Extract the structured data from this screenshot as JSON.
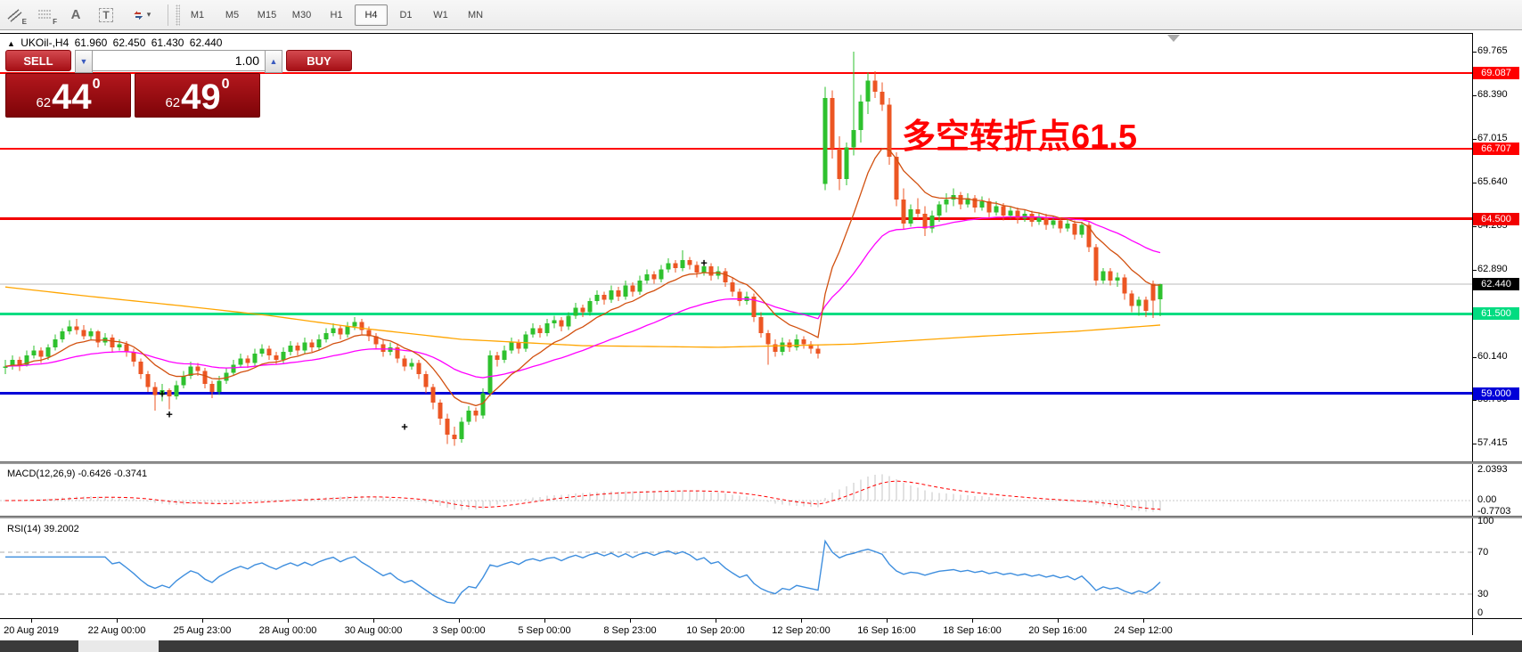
{
  "toolbar": {
    "tools": [
      {
        "name": "equidistant-channel",
        "glyph": "E"
      },
      {
        "name": "fibonacci-lines",
        "glyph": "F"
      },
      {
        "name": "text-label",
        "glyph": "A"
      },
      {
        "name": "text",
        "glyph": "T"
      },
      {
        "name": "arrow-objects",
        "glyph": "▾"
      }
    ],
    "timeframes": [
      "M1",
      "M5",
      "M15",
      "M30",
      "H1",
      "H4",
      "D1",
      "W1",
      "MN"
    ],
    "selected_timeframe": "H4"
  },
  "symbol_info": {
    "collapse_arrow": "▲",
    "symbol": "UKOil-,H4",
    "open": "61.960",
    "high": "62.450",
    "low": "61.430",
    "close": "62.440"
  },
  "trade_panel": {
    "sell_label": "SELL",
    "buy_label": "BUY",
    "volume": "1.00",
    "sell_price": {
      "small": "62",
      "big": "44",
      "sup": "0"
    },
    "buy_price": {
      "small": "62",
      "big": "49",
      "sup": "0"
    }
  },
  "annotation": {
    "text": "多空转折点61.5",
    "color": "#FF0000"
  },
  "macd_label": "MACD(12,26,9) -0.6426 -0.3741",
  "rsi_label": "RSI(14) 39.2002",
  "chart_data": {
    "type": "candlestick",
    "symbol": "UKOil",
    "timeframe": "H4",
    "bull_color": "#2EC12E",
    "bear_color": "#EC5623",
    "price_axis": {
      "ticks": [
        {
          "label": "69.765",
          "value": 69.765
        },
        {
          "label": "68.390",
          "value": 68.39
        },
        {
          "label": "67.015",
          "value": 67.015
        },
        {
          "label": "65.640",
          "value": 65.64
        },
        {
          "label": "64.265",
          "value": 64.265
        },
        {
          "label": "62.890",
          "value": 62.89
        },
        {
          "label": "60.140",
          "value": 60.14
        },
        {
          "label": "58.790",
          "value": 58.79
        },
        {
          "label": "57.415",
          "value": 57.415
        }
      ],
      "level_labels": [
        {
          "label": "69.087",
          "value": 69.087,
          "bg": "#FF0000"
        },
        {
          "label": "66.707",
          "value": 66.707,
          "bg": "#FF0000"
        },
        {
          "label": "64.500",
          "value": 64.5,
          "bg": "#F20000"
        },
        {
          "label": "62.440",
          "value": 62.44,
          "bg": "#000000"
        },
        {
          "label": "61.500",
          "value": 61.5,
          "bg": "#00DC81"
        },
        {
          "label": "59.000",
          "value": 59.0,
          "bg": "#0000D8"
        }
      ]
    },
    "hlines": [
      {
        "value": 69.087,
        "color": "#FF0000",
        "width": 2
      },
      {
        "value": 66.707,
        "color": "#FF0000",
        "width": 2
      },
      {
        "value": 64.5,
        "color": "#F20000",
        "width": 3
      },
      {
        "value": 61.5,
        "color": "#00DC81",
        "width": 3
      },
      {
        "value": 59.0,
        "color": "#0000D8",
        "width": 3
      }
    ],
    "bid_line": {
      "value": 62.44,
      "color": "#BBBBBB"
    },
    "time_axis": {
      "ticks": [
        "20 Aug 2019",
        "22 Aug 00:00",
        "25 Aug 23:00",
        "28 Aug 00:00",
        "30 Aug 00:00",
        "3 Sep 00:00",
        "5 Sep 00:00",
        "8 Sep 23:00",
        "10 Sep 20:00",
        "12 Sep 20:00",
        "16 Sep 16:00",
        "18 Sep 16:00",
        "20 Sep 16:00",
        "24 Sep 12:00"
      ]
    },
    "ma_lines": [
      {
        "name": "fast",
        "type": "ema",
        "period": 10,
        "color": "#D2500F"
      },
      {
        "name": "medium",
        "type": "ema",
        "period": 34,
        "color": "#FF00FF"
      },
      {
        "name": "slow",
        "type": "points",
        "color": "#FFA500",
        "points": [
          [
            0,
            62.35
          ],
          [
            12,
            62.05
          ],
          [
            25,
            61.75
          ],
          [
            37,
            61.45
          ],
          [
            50,
            61.05
          ],
          [
            64,
            60.7
          ],
          [
            81,
            60.5
          ],
          [
            100,
            60.45
          ],
          [
            119,
            60.55
          ],
          [
            137,
            60.8
          ],
          [
            150,
            60.95
          ],
          [
            162,
            61.15
          ]
        ]
      }
    ],
    "markers": [
      [
        22,
        59.0
      ],
      [
        23,
        58.35
      ],
      [
        56,
        57.95
      ],
      [
        98,
        63.11
      ]
    ],
    "macd": {
      "fast": 12,
      "slow": 26,
      "signal": 9,
      "hist_color": "#C4C4C4",
      "signal_color": "#FF0000",
      "ticks": [
        {
          "label": "2.0393",
          "value": 2.0393
        },
        {
          "label": "0.00",
          "value": 0
        },
        {
          "label": "-0.7703",
          "value": -0.7703
        }
      ]
    },
    "rsi": {
      "period": 14,
      "color": "#3E8EDE",
      "levels": [
        70,
        30
      ],
      "ticks": [
        {
          "label": "100",
          "value": 100
        },
        {
          "label": "70",
          "value": 70
        },
        {
          "label": "30",
          "value": 30
        },
        {
          "label": "0",
          "value": 0
        }
      ]
    },
    "candles": [
      [
        59.8,
        60.05,
        59.6,
        59.85
      ],
      [
        59.85,
        60.2,
        59.75,
        60.05
      ],
      [
        60.05,
        60.15,
        59.7,
        59.9
      ],
      [
        59.9,
        60.35,
        59.85,
        60.2
      ],
      [
        60.2,
        60.5,
        60.1,
        60.35
      ],
      [
        60.35,
        60.45,
        59.95,
        60.15
      ],
      [
        60.15,
        60.55,
        60.05,
        60.45
      ],
      [
        60.45,
        60.85,
        60.35,
        60.7
      ],
      [
        60.7,
        61.05,
        60.6,
        60.95
      ],
      [
        60.95,
        61.3,
        60.85,
        61.1
      ],
      [
        61.1,
        61.35,
        60.85,
        61.0
      ],
      [
        61.0,
        61.15,
        60.7,
        60.8
      ],
      [
        60.8,
        61.05,
        60.7,
        60.95
      ],
      [
        60.95,
        61.0,
        60.45,
        60.6
      ],
      [
        60.6,
        60.9,
        60.5,
        60.75
      ],
      [
        60.75,
        60.85,
        60.3,
        60.45
      ],
      [
        60.45,
        60.7,
        60.35,
        60.55
      ],
      [
        60.55,
        60.65,
        60.15,
        60.3
      ],
      [
        60.3,
        60.4,
        59.85,
        60.0
      ],
      [
        60.0,
        60.1,
        59.45,
        59.6
      ],
      [
        59.6,
        59.7,
        59.05,
        59.2
      ],
      [
        59.2,
        59.35,
        58.45,
        58.95
      ],
      [
        58.95,
        59.3,
        58.75,
        59.1
      ],
      [
        59.1,
        59.15,
        58.5,
        58.9
      ],
      [
        58.9,
        59.4,
        58.8,
        59.25
      ],
      [
        59.25,
        59.7,
        59.15,
        59.55
      ],
      [
        59.55,
        60.0,
        59.45,
        59.85
      ],
      [
        59.85,
        59.95,
        59.55,
        59.7
      ],
      [
        59.7,
        59.8,
        59.15,
        59.3
      ],
      [
        59.3,
        59.4,
        58.85,
        59.05
      ],
      [
        59.05,
        59.55,
        58.95,
        59.4
      ],
      [
        59.4,
        59.8,
        59.3,
        59.65
      ],
      [
        59.65,
        60.05,
        59.55,
        59.9
      ],
      [
        59.9,
        60.25,
        59.8,
        60.1
      ],
      [
        60.1,
        60.2,
        59.8,
        59.95
      ],
      [
        59.95,
        60.4,
        59.85,
        60.25
      ],
      [
        60.25,
        60.55,
        60.15,
        60.4
      ],
      [
        60.4,
        60.5,
        60.05,
        60.2
      ],
      [
        60.2,
        60.3,
        59.9,
        60.05
      ],
      [
        60.05,
        60.45,
        59.95,
        60.3
      ],
      [
        60.3,
        60.65,
        60.2,
        60.5
      ],
      [
        60.5,
        60.6,
        60.2,
        60.35
      ],
      [
        60.35,
        60.75,
        60.25,
        60.6
      ],
      [
        60.6,
        60.7,
        60.3,
        60.45
      ],
      [
        60.45,
        60.85,
        60.35,
        60.7
      ],
      [
        60.7,
        61.05,
        60.6,
        60.9
      ],
      [
        60.9,
        61.2,
        60.8,
        61.05
      ],
      [
        61.05,
        61.15,
        60.7,
        60.85
      ],
      [
        60.85,
        61.25,
        60.75,
        61.1
      ],
      [
        61.1,
        61.4,
        61.0,
        61.25
      ],
      [
        61.25,
        61.35,
        60.85,
        61.0
      ],
      [
        61.0,
        61.1,
        60.65,
        60.8
      ],
      [
        60.8,
        60.9,
        60.4,
        60.55
      ],
      [
        60.55,
        60.7,
        60.15,
        60.3
      ],
      [
        60.3,
        60.6,
        60.2,
        60.45
      ],
      [
        60.45,
        60.55,
        59.95,
        60.1
      ],
      [
        60.1,
        60.2,
        59.7,
        59.85
      ],
      [
        59.85,
        60.1,
        59.75,
        59.95
      ],
      [
        59.95,
        60.05,
        59.45,
        59.6
      ],
      [
        59.6,
        59.7,
        59.0,
        59.2
      ],
      [
        59.2,
        59.3,
        58.5,
        58.7
      ],
      [
        58.7,
        58.8,
        58.0,
        58.2
      ],
      [
        58.2,
        58.35,
        57.4,
        57.7
      ],
      [
        57.7,
        57.95,
        57.35,
        57.55
      ],
      [
        57.55,
        58.25,
        57.45,
        58.1
      ],
      [
        58.1,
        58.6,
        58.0,
        58.45
      ],
      [
        58.45,
        58.55,
        58.1,
        58.3
      ],
      [
        58.3,
        59.15,
        58.2,
        59.0
      ],
      [
        59.0,
        60.35,
        58.9,
        60.2
      ],
      [
        60.2,
        60.3,
        59.85,
        60.05
      ],
      [
        60.05,
        60.5,
        59.95,
        60.35
      ],
      [
        60.35,
        60.75,
        60.25,
        60.6
      ],
      [
        60.6,
        60.7,
        60.25,
        60.4
      ],
      [
        60.4,
        60.95,
        60.3,
        60.85
      ],
      [
        60.85,
        61.2,
        60.75,
        61.05
      ],
      [
        61.05,
        61.15,
        60.75,
        60.9
      ],
      [
        60.9,
        61.35,
        60.8,
        61.2
      ],
      [
        61.2,
        61.45,
        61.05,
        61.3
      ],
      [
        61.3,
        61.4,
        60.95,
        61.1
      ],
      [
        61.1,
        61.55,
        61.0,
        61.45
      ],
      [
        61.45,
        61.85,
        61.35,
        61.7
      ],
      [
        61.7,
        61.8,
        61.4,
        61.55
      ],
      [
        61.55,
        62.0,
        61.45,
        61.9
      ],
      [
        61.9,
        62.25,
        61.8,
        62.1
      ],
      [
        62.1,
        62.2,
        61.8,
        61.95
      ],
      [
        61.95,
        62.4,
        61.85,
        62.25
      ],
      [
        62.25,
        62.35,
        61.9,
        62.05
      ],
      [
        62.05,
        62.55,
        61.95,
        62.4
      ],
      [
        62.4,
        62.5,
        62.05,
        62.2
      ],
      [
        62.2,
        62.7,
        62.1,
        62.55
      ],
      [
        62.55,
        62.9,
        62.45,
        62.75
      ],
      [
        62.75,
        62.85,
        62.45,
        62.6
      ],
      [
        62.6,
        63.05,
        62.5,
        62.9
      ],
      [
        62.9,
        63.25,
        62.8,
        63.1
      ],
      [
        63.1,
        63.2,
        62.8,
        62.95
      ],
      [
        62.95,
        63.5,
        62.85,
        63.2
      ],
      [
        63.2,
        63.3,
        62.9,
        63.05
      ],
      [
        63.05,
        63.15,
        62.65,
        62.8
      ],
      [
        62.8,
        63.15,
        62.7,
        63.0
      ],
      [
        63.0,
        63.1,
        62.55,
        62.7
      ],
      [
        62.7,
        63.0,
        62.6,
        62.85
      ],
      [
        62.85,
        62.95,
        62.35,
        62.5
      ],
      [
        62.5,
        62.65,
        62.05,
        62.2
      ],
      [
        62.2,
        62.3,
        61.75,
        61.9
      ],
      [
        61.9,
        62.2,
        61.8,
        62.05
      ],
      [
        62.05,
        62.15,
        61.25,
        61.4
      ],
      [
        61.4,
        61.55,
        60.75,
        60.9
      ],
      [
        60.9,
        61.0,
        59.9,
        60.55
      ],
      [
        60.55,
        60.7,
        60.15,
        60.3
      ],
      [
        60.3,
        60.75,
        60.2,
        60.6
      ],
      [
        60.6,
        60.7,
        60.3,
        60.45
      ],
      [
        60.45,
        60.85,
        60.35,
        60.7
      ],
      [
        60.7,
        60.8,
        60.4,
        60.55
      ],
      [
        60.55,
        60.65,
        60.25,
        60.4
      ],
      [
        60.4,
        60.55,
        60.1,
        60.25
      ],
      [
        65.6,
        68.65,
        65.4,
        68.3
      ],
      [
        68.3,
        68.55,
        66.4,
        66.7
      ],
      [
        66.7,
        67.1,
        65.4,
        65.75
      ],
      [
        65.75,
        66.9,
        65.55,
        66.75
      ],
      [
        66.75,
        69.76,
        66.5,
        67.3
      ],
      [
        67.3,
        68.4,
        66.9,
        68.2
      ],
      [
        68.2,
        69.1,
        67.8,
        68.85
      ],
      [
        68.85,
        69.15,
        68.3,
        68.5
      ],
      [
        68.5,
        68.8,
        67.9,
        68.1
      ],
      [
        68.1,
        68.3,
        66.2,
        66.45
      ],
      [
        66.45,
        66.6,
        64.9,
        65.1
      ],
      [
        65.1,
        65.45,
        64.15,
        64.35
      ],
      [
        64.35,
        64.95,
        64.25,
        64.8
      ],
      [
        64.8,
        65.15,
        64.5,
        64.65
      ],
      [
        64.65,
        64.9,
        63.95,
        64.2
      ],
      [
        64.2,
        64.75,
        64.05,
        64.6
      ],
      [
        64.6,
        65.05,
        64.4,
        64.95
      ],
      [
        64.95,
        65.3,
        64.7,
        65.1
      ],
      [
        65.1,
        65.45,
        64.9,
        65.25
      ],
      [
        65.25,
        65.35,
        64.8,
        64.95
      ],
      [
        64.95,
        65.3,
        64.85,
        65.15
      ],
      [
        65.15,
        65.25,
        64.7,
        64.85
      ],
      [
        64.85,
        65.2,
        64.75,
        65.05
      ],
      [
        65.05,
        65.15,
        64.55,
        64.7
      ],
      [
        64.7,
        65.05,
        64.6,
        64.9
      ],
      [
        64.9,
        65.0,
        64.45,
        64.6
      ],
      [
        64.6,
        64.9,
        64.5,
        64.75
      ],
      [
        64.75,
        64.85,
        64.35,
        64.5
      ],
      [
        64.5,
        64.8,
        64.4,
        64.65
      ],
      [
        64.65,
        64.75,
        64.25,
        64.4
      ],
      [
        64.4,
        64.7,
        64.3,
        64.55
      ],
      [
        64.55,
        64.65,
        64.15,
        64.3
      ],
      [
        64.3,
        64.6,
        64.2,
        64.45
      ],
      [
        64.45,
        64.55,
        64.05,
        64.2
      ],
      [
        64.2,
        64.5,
        64.1,
        64.35
      ],
      [
        64.35,
        64.45,
        63.85,
        64.0
      ],
      [
        64.0,
        64.4,
        63.9,
        64.3
      ],
      [
        64.3,
        64.4,
        63.45,
        63.6
      ],
      [
        63.6,
        63.7,
        62.4,
        62.55
      ],
      [
        62.55,
        62.95,
        62.45,
        62.85
      ],
      [
        62.85,
        62.95,
        62.4,
        62.55
      ],
      [
        62.55,
        62.8,
        62.35,
        62.65
      ],
      [
        62.65,
        62.75,
        61.95,
        62.15
      ],
      [
        62.15,
        62.25,
        61.55,
        61.75
      ],
      [
        61.75,
        62.05,
        61.45,
        61.95
      ],
      [
        61.95,
        62.05,
        61.4,
        61.6
      ],
      [
        62.45,
        62.55,
        61.37,
        61.92
      ],
      [
        61.96,
        62.45,
        61.43,
        62.44
      ]
    ]
  }
}
